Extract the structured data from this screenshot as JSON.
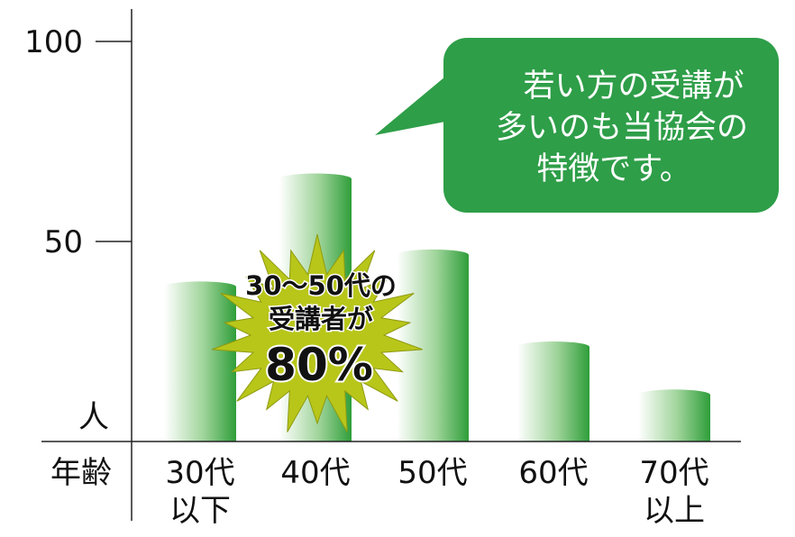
{
  "chart_data": {
    "type": "bar",
    "categories": [
      "30代\n以下",
      "40代",
      "50代",
      "60代",
      "70代\n以上"
    ],
    "values": [
      40,
      67,
      48,
      25,
      13
    ],
    "ylim": [
      0,
      100
    ],
    "yticks": [
      100,
      50
    ],
    "ylabel": "人",
    "xlabel": "年齢",
    "bar_colors": {
      "light": "#ffffff",
      "dark": "#2f9e3a"
    },
    "grid": false,
    "legend": "none"
  },
  "callout": {
    "lines": [
      "若い方の受講が",
      "多いのも当協会の",
      "特徴です。"
    ],
    "fill": "#2e9e48",
    "text_color": "#ffffff"
  },
  "starburst": {
    "lines": [
      "30〜50代の",
      "受講者が"
    ],
    "big": "80%",
    "fill": "#b8c61a"
  }
}
